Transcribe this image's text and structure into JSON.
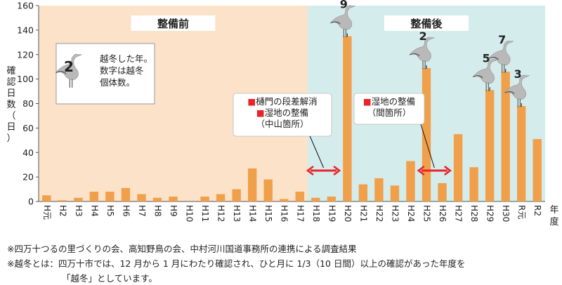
{
  "chart_data": {
    "type": "bar",
    "title": "",
    "xlabel": "年度",
    "ylabel": "確認日数（日）",
    "ylim": [
      0,
      160
    ],
    "yticks": [
      0,
      20,
      40,
      60,
      80,
      100,
      120,
      140,
      160
    ],
    "grid": false,
    "bar_color": "#f0a04b",
    "categories": [
      "H元",
      "H2",
      "H3",
      "H4",
      "H5",
      "H6",
      "H7",
      "H8",
      "H9",
      "H10",
      "H11",
      "H12",
      "H13",
      "H14",
      "H15",
      "H16",
      "H17",
      "H18",
      "H19",
      "H20",
      "H21",
      "H22",
      "H23",
      "H24",
      "H25",
      "H26",
      "H27",
      "H28",
      "H29",
      "H30",
      "R元",
      "R2"
    ],
    "values": [
      5,
      1,
      3,
      8,
      8,
      11,
      6,
      3,
      4,
      0,
      4,
      6,
      10,
      27,
      18,
      2,
      8,
      3,
      4,
      135,
      14,
      19,
      13,
      33,
      109,
      15,
      55,
      28,
      91,
      106,
      78,
      51
    ],
    "regions": [
      {
        "label": "整備前",
        "from": "H元",
        "to": "H17",
        "color": "#fbe2c8"
      },
      {
        "label": "整備後",
        "from": "H18",
        "to": "R2",
        "color": "#d5ecec"
      }
    ],
    "wintering": [
      {
        "category": "H20",
        "count": "9"
      },
      {
        "category": "H25",
        "count": "2"
      },
      {
        "category": "H29",
        "count": "5"
      },
      {
        "category": "H30",
        "count": "7"
      },
      {
        "category": "R元",
        "count": "3"
      }
    ],
    "legend": {
      "sample_number": "2",
      "lines": [
        "越冬した年。",
        "数字は越冬",
        "個体数。"
      ]
    },
    "annotations": [
      {
        "lines": [
          "■樋門の段差解消",
          "■湿地の整備",
          "（中山箇所）"
        ],
        "arrow_from": "H18",
        "arrow_to": "H19"
      },
      {
        "lines": [
          "■湿地の整備",
          "（間箇所）"
        ],
        "arrow_from": "H25",
        "arrow_to": "H26"
      }
    ],
    "accent_color": "#e8242a"
  },
  "notes": [
    "※四万十つるの里づくりの会、高知野鳥の会、中村河川国道事務所の連携による調査結果",
    "※越冬とは：四万十市では、12 月から 1 月にわたり確認され、ひと月に 1/3（10 日間）以上の確認があった年度を",
    "「越冬」としています。"
  ]
}
